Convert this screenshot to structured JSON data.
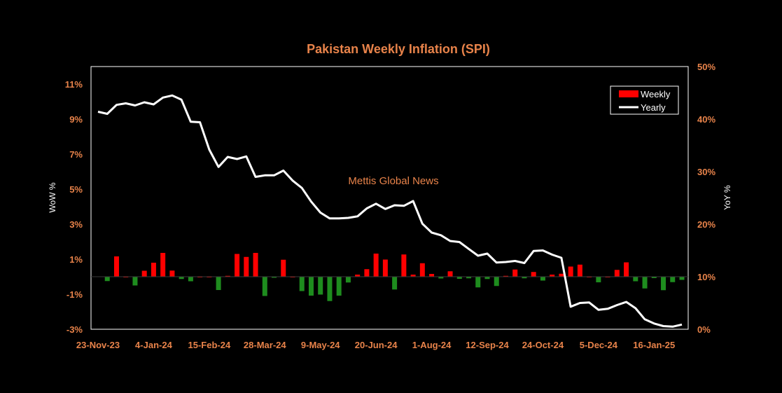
{
  "chart_data": {
    "type": "bar+line",
    "title": "Pakistan Weekly Inflation (SPI)",
    "watermark": "Mettis Global News",
    "ylabel_left": "WoW %",
    "ylabel_right": "YoY %",
    "ylim_left": [
      -3,
      12
    ],
    "ylim_right": [
      0,
      50
    ],
    "yticks_left": [
      "-3%",
      "-1%",
      "1%",
      "3%",
      "5%",
      "7%",
      "9%",
      "11%"
    ],
    "yticks_right": [
      "0%",
      "10%",
      "20%",
      "30%",
      "40%",
      "50%"
    ],
    "xtick_labels": [
      "23-Nov-23",
      "4-Jan-24",
      "15-Feb-24",
      "28-Mar-24",
      "9-May-24",
      "20-Jun-24",
      "1-Aug-24",
      "12-Sep-24",
      "24-Oct-24",
      "5-Dec-24",
      "16-Jan-25"
    ],
    "legend": {
      "position": "top-right",
      "entries": [
        "Weekly",
        "Yearly"
      ]
    },
    "colors": {
      "positive": "#FF0000",
      "negative": "#1E8C1E",
      "line": "#FFFFFF",
      "text": "#E8834A"
    },
    "series": [
      {
        "name": "Weekly",
        "axis": "left",
        "values": [
          0.02,
          -0.25,
          1.16,
          0.0,
          -0.5,
          0.34,
          0.8,
          1.36,
          0.35,
          -0.13,
          -0.26,
          0.0,
          0.0,
          -0.76,
          0.05,
          1.3,
          1.13,
          1.36,
          -1.1,
          -0.06,
          0.97,
          0.0,
          -0.82,
          -1.08,
          -1.02,
          -1.39,
          -1.08,
          -0.33,
          0.12,
          0.43,
          1.32,
          0.98,
          -0.73,
          1.27,
          0.12,
          0.77,
          0.16,
          -0.1,
          0.31,
          -0.12,
          -0.09,
          -0.61,
          -0.13,
          -0.53,
          0.05,
          0.41,
          -0.09,
          0.27,
          -0.22,
          0.12,
          0.17,
          0.58,
          0.69,
          0.0,
          -0.32,
          0.0,
          0.39,
          0.82,
          -0.26,
          -0.67,
          -0.08,
          -0.77,
          -0.31,
          -0.18
        ]
      },
      {
        "name": "Yearly",
        "axis": "right",
        "values": [
          41.4,
          41.0,
          42.7,
          43.0,
          42.6,
          43.2,
          42.8,
          44.1,
          44.5,
          43.7,
          39.5,
          39.4,
          34.2,
          30.9,
          32.8,
          32.4,
          32.9,
          29.0,
          29.3,
          29.3,
          30.2,
          28.3,
          26.9,
          24.3,
          22.2,
          21.1,
          21.1,
          21.2,
          21.5,
          23.0,
          23.9,
          22.9,
          23.6,
          23.5,
          24.4,
          20.1,
          18.4,
          17.9,
          16.8,
          16.6,
          15.3,
          14.0,
          14.4,
          12.7,
          12.8,
          13.0,
          12.6,
          14.9,
          15.0,
          14.2,
          13.6,
          4.3,
          5.0,
          5.1,
          3.7,
          3.9,
          4.6,
          5.2,
          4.0,
          1.9,
          1.1,
          0.6,
          0.5,
          0.9
        ]
      }
    ]
  }
}
